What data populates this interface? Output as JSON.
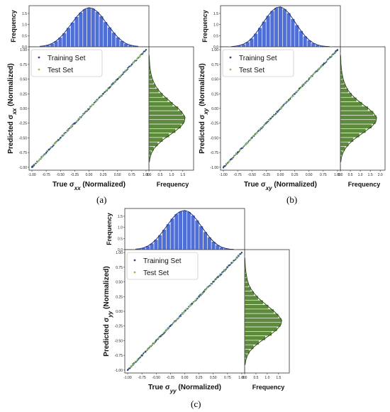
{
  "chart_data": [
    {
      "panel_label": "(a)",
      "type": "scatter",
      "xlabel_html": "True σ<tspan font-style=\"italic\" font-size=\"8\" baseline-shift=\"sub\">xx</tspan> (Normalized)",
      "ylabel_html": "Predicted σ<tspan font-style=\"italic\" font-size=\"8\" baseline-shift=\"sub\">xx</tspan> (Normalized)",
      "xlim": [
        -1.05,
        1.05
      ],
      "ylim": [
        -1.05,
        1.05
      ],
      "xticks": [
        "-1.00",
        "-0.75",
        "-0.50",
        "-0.25",
        "0.00",
        "0.25",
        "0.50",
        "0.75",
        "1.00"
      ],
      "yticks": [
        "-1.00",
        "-0.75",
        "-0.50",
        "-0.25",
        "0.00",
        "0.25",
        "0.50",
        "0.75",
        "1.00"
      ],
      "legend": [
        "Training Set",
        "Test Set"
      ],
      "legend_position": "upper-left",
      "series": [
        {
          "name": "Training Set",
          "color": "#2e4a78",
          "x": [
            -1.0,
            -0.75,
            -0.5,
            -0.25,
            0.0,
            0.25,
            0.5,
            0.75,
            1.0
          ],
          "y": [
            -1.0,
            -0.75,
            -0.5,
            -0.25,
            0.0,
            0.25,
            0.5,
            0.75,
            1.0
          ]
        },
        {
          "name": "Test Set",
          "color": "#8fbf6a",
          "x": [
            -0.9,
            -0.6,
            -0.3,
            0.0,
            0.3,
            0.6,
            0.9
          ],
          "y": [
            -0.9,
            -0.6,
            -0.3,
            0.0,
            0.3,
            0.6,
            0.9
          ]
        }
      ],
      "top_hist": {
        "ylabel": "Frequency",
        "color": "#4f6fd6",
        "yticks": [
          "0.0",
          "0.5",
          "1.0",
          "1.5"
        ],
        "ylim": [
          0,
          1.85
        ],
        "values": [
          0.02,
          0.04,
          0.08,
          0.15,
          0.26,
          0.42,
          0.62,
          0.86,
          1.1,
          1.35,
          1.55,
          1.7,
          1.76,
          1.72,
          1.58,
          1.38,
          1.12,
          0.88,
          0.64,
          0.43,
          0.27,
          0.15,
          0.08,
          0.04,
          0.02
        ]
      },
      "right_hist": {
        "xlabel": "Frequency",
        "color": "#5e8a3c",
        "xticks": [
          "0.0",
          "0.5",
          "1.0",
          "1.5"
        ],
        "xlim": [
          0,
          1.85
        ],
        "values": [
          0.01,
          0.02,
          0.03,
          0.05,
          0.08,
          0.13,
          0.2,
          0.3,
          0.44,
          0.62,
          0.84,
          1.06,
          1.3,
          1.48,
          1.6,
          1.56,
          1.42,
          1.18,
          0.9,
          0.62,
          0.4,
          0.22,
          0.11,
          0.05,
          0.02
        ]
      }
    },
    {
      "panel_label": "(b)",
      "type": "scatter",
      "xlabel_html": "True σ<tspan font-style=\"italic\" font-size=\"8\" baseline-shift=\"sub\">xy</tspan> (Normalized)",
      "ylabel_html": "Predicted σ<tspan font-style=\"italic\" font-size=\"8\" baseline-shift=\"sub\">xy</tspan> (Normalized)",
      "xlim": [
        -1.05,
        1.05
      ],
      "ylim": [
        -1.05,
        1.05
      ],
      "xticks": [
        "-1.00",
        "-0.75",
        "-0.50",
        "-0.25",
        "0.00",
        "0.25",
        "0.50",
        "0.75",
        "1.00"
      ],
      "yticks": [
        "-1.00",
        "-0.75",
        "-0.50",
        "-0.25",
        "0.00",
        "0.25",
        "0.50",
        "0.75",
        "1.00"
      ],
      "legend": [
        "Training Set",
        "Test Set"
      ],
      "legend_position": "upper-left",
      "series": [
        {
          "name": "Training Set",
          "color": "#2e4a78",
          "x": [
            -1.0,
            -0.75,
            -0.5,
            -0.25,
            0.0,
            0.25,
            0.5,
            0.75,
            1.0
          ],
          "y": [
            -1.0,
            -0.75,
            -0.5,
            -0.25,
            0.0,
            0.25,
            0.5,
            0.75,
            1.0
          ]
        },
        {
          "name": "Test Set",
          "color": "#8fbf6a",
          "x": [
            -0.9,
            -0.6,
            -0.3,
            0.0,
            0.3,
            0.6,
            0.9
          ],
          "y": [
            -0.9,
            -0.6,
            -0.3,
            0.0,
            0.3,
            0.6,
            0.9
          ]
        }
      ],
      "top_hist": {
        "ylabel": "Frequency",
        "color": "#4f6fd6",
        "yticks": [
          "0.0",
          "0.5",
          "1.0",
          "1.5"
        ],
        "ylim": [
          0,
          1.85
        ],
        "values": [
          0.01,
          0.03,
          0.06,
          0.12,
          0.22,
          0.38,
          0.6,
          0.86,
          1.14,
          1.4,
          1.62,
          1.76,
          1.8,
          1.7,
          1.52,
          1.26,
          0.98,
          0.72,
          0.48,
          0.3,
          0.17,
          0.09,
          0.04,
          0.02,
          0.01
        ]
      },
      "right_hist": {
        "xlabel": "Frequency",
        "color": "#5e8a3c",
        "xticks": [
          "0.0",
          "0.5",
          "1.0",
          "1.5",
          "2.0"
        ],
        "xlim": [
          0,
          2.1
        ],
        "values": [
          0.01,
          0.02,
          0.03,
          0.05,
          0.08,
          0.12,
          0.18,
          0.27,
          0.4,
          0.58,
          0.82,
          1.1,
          1.4,
          1.66,
          1.82,
          1.78,
          1.58,
          1.28,
          0.96,
          0.66,
          0.42,
          0.24,
          0.12,
          0.05,
          0.02
        ]
      }
    },
    {
      "panel_label": "(c)",
      "type": "scatter",
      "xlabel_html": "True σ<tspan font-style=\"italic\" font-size=\"8\" baseline-shift=\"sub\">yy</tspan> (Normalized)",
      "ylabel_html": "Predicted σ<tspan font-style=\"italic\" font-size=\"8\" baseline-shift=\"sub\">yy</tspan> (Normalized)",
      "xlim": [
        -1.05,
        1.05
      ],
      "ylim": [
        -1.05,
        1.05
      ],
      "xticks": [
        "-1.00",
        "-0.75",
        "-0.50",
        "-0.25",
        "0.00",
        "0.25",
        "0.50",
        "0.75",
        "1.00"
      ],
      "yticks": [
        "-1.00",
        "-0.75",
        "-0.50",
        "-0.25",
        "0.00",
        "0.25",
        "0.50",
        "0.75",
        "1.00"
      ],
      "legend": [
        "Training Set",
        "Test Set"
      ],
      "legend_position": "upper-left",
      "series": [
        {
          "name": "Training Set",
          "color": "#2e4a78",
          "x": [
            -1.0,
            -0.75,
            -0.5,
            -0.25,
            0.0,
            0.25,
            0.5,
            0.75,
            1.0
          ],
          "y": [
            -1.0,
            -0.75,
            -0.5,
            -0.25,
            0.0,
            0.25,
            0.5,
            0.75,
            1.0
          ]
        },
        {
          "name": "Test Set",
          "color": "#8fbf6a",
          "x": [
            -0.9,
            -0.6,
            -0.3,
            0.0,
            0.3,
            0.6,
            0.9
          ],
          "y": [
            -0.9,
            -0.6,
            -0.3,
            0.0,
            0.3,
            0.6,
            0.9
          ]
        }
      ],
      "top_hist": {
        "ylabel": "Frequency",
        "color": "#4f6fd6",
        "yticks": [
          "0.0",
          "0.5",
          "1.0",
          "1.5"
        ],
        "ylim": [
          0,
          1.85
        ],
        "values": [
          0.02,
          0.04,
          0.08,
          0.16,
          0.28,
          0.45,
          0.66,
          0.9,
          1.15,
          1.4,
          1.6,
          1.72,
          1.76,
          1.7,
          1.54,
          1.32,
          1.06,
          0.8,
          0.56,
          0.36,
          0.21,
          0.11,
          0.05,
          0.02,
          0.01
        ]
      },
      "right_hist": {
        "xlabel": "Frequency",
        "color": "#5e8a3c",
        "xticks": [
          "0.0",
          "0.5",
          "1.0",
          "1.5"
        ],
        "xlim": [
          0,
          1.85
        ],
        "values": [
          0.01,
          0.02,
          0.03,
          0.05,
          0.08,
          0.12,
          0.18,
          0.28,
          0.42,
          0.6,
          0.82,
          1.06,
          1.3,
          1.5,
          1.64,
          1.6,
          1.44,
          1.2,
          0.92,
          0.64,
          0.4,
          0.22,
          0.11,
          0.05,
          0.02
        ]
      }
    }
  ]
}
